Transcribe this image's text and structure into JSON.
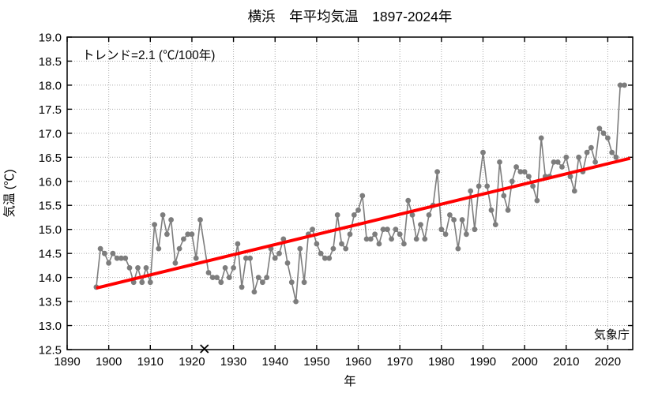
{
  "chart_data": {
    "type": "line",
    "title": "横浜　年平均気温　1897-2024年",
    "trend_annotation": "トレンド=2.1 (℃/100年)",
    "source_label": "気象庁",
    "xlabel": "年",
    "ylabel": "気温 (℃)",
    "legend_position": "none",
    "grid": "dotted",
    "x_axis": {
      "min": 1890,
      "max": 2026,
      "tick_interval": 10,
      "tick_labels": [
        "1890",
        "1900",
        "1910",
        "1920",
        "1930",
        "1940",
        "1950",
        "1960",
        "1970",
        "1980",
        "1990",
        "2000",
        "2010",
        "2020"
      ]
    },
    "y_axis": {
      "min": 12.5,
      "max": 19.0,
      "tick_interval": 0.5,
      "tick_labels": [
        "12.5",
        "13.0",
        "13.5",
        "14.0",
        "14.5",
        "15.0",
        "15.5",
        "16.0",
        "16.5",
        "17.0",
        "17.5",
        "18.0",
        "18.5",
        "19.0"
      ]
    },
    "missing_data": {
      "year": 1923,
      "marker": "×",
      "note": "plotted on x-axis"
    },
    "series": {
      "name": "年平均気温",
      "start_year": 1897,
      "end_year": 2024,
      "values": [
        13.8,
        14.6,
        14.5,
        14.3,
        14.5,
        14.4,
        14.4,
        14.4,
        14.2,
        13.9,
        14.2,
        13.9,
        14.2,
        13.9,
        15.1,
        14.6,
        15.3,
        14.9,
        15.2,
        14.3,
        14.6,
        14.8,
        14.9,
        14.9,
        14.4,
        15.2,
        null,
        14.1,
        14.0,
        14.0,
        13.9,
        14.2,
        14.0,
        14.2,
        14.7,
        13.8,
        14.4,
        14.4,
        13.7,
        14.0,
        13.9,
        14.0,
        14.6,
        14.4,
        14.5,
        14.8,
        14.3,
        13.9,
        13.5,
        14.6,
        13.9,
        14.9,
        15.0,
        14.7,
        14.5,
        14.4,
        14.4,
        14.6,
        15.3,
        14.7,
        14.6,
        14.9,
        15.3,
        15.4,
        15.7,
        14.8,
        14.8,
        14.9,
        14.7,
        15.0,
        15.0,
        14.8,
        15.0,
        14.9,
        14.7,
        15.6,
        15.3,
        14.8,
        15.1,
        14.8,
        15.3,
        15.5,
        16.2,
        15.0,
        14.9,
        15.3,
        15.2,
        14.6,
        15.2,
        14.9,
        15.8,
        15.0,
        15.9,
        16.6,
        15.9,
        15.4,
        15.1,
        16.4,
        15.7,
        15.4,
        16.0,
        16.3,
        16.2,
        16.2,
        16.1,
        15.9,
        15.6,
        16.9,
        16.1,
        16.1,
        16.4,
        16.4,
        16.3,
        16.5,
        16.1,
        15.8,
        16.5,
        16.2,
        16.6,
        16.7,
        16.4,
        17.1,
        17.0,
        16.9,
        16.6,
        16.5,
        18.0,
        18.0
      ]
    },
    "trend_line": {
      "slope_c_per_100yr": 2.1,
      "start": {
        "year": 1897,
        "value": 13.78
      },
      "end": {
        "year": 2025.4,
        "value": 16.48
      }
    },
    "colors": {
      "series": "#7d7d7d",
      "trend": "#ff0000",
      "text": "#000000",
      "grid": "#ababab",
      "frame": "#000000",
      "background": "#ffffff"
    }
  }
}
